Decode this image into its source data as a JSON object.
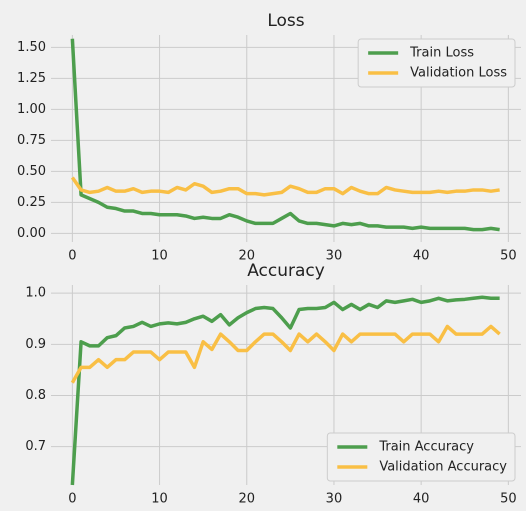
{
  "chart_data": [
    {
      "type": "line",
      "title": "Loss",
      "x": [
        0,
        1,
        2,
        3,
        4,
        5,
        6,
        7,
        8,
        9,
        10,
        11,
        12,
        13,
        14,
        15,
        16,
        17,
        18,
        19,
        20,
        21,
        22,
        23,
        24,
        25,
        26,
        27,
        28,
        29,
        30,
        31,
        32,
        33,
        34,
        35,
        36,
        37,
        38,
        39,
        40,
        41,
        42,
        43,
        44,
        45,
        46,
        47,
        48,
        49
      ],
      "series": [
        {
          "name": "Train Loss",
          "color": "#4d9e4d",
          "values": [
            1.57,
            0.31,
            0.28,
            0.25,
            0.21,
            0.2,
            0.18,
            0.18,
            0.16,
            0.16,
            0.15,
            0.15,
            0.15,
            0.14,
            0.12,
            0.13,
            0.12,
            0.12,
            0.15,
            0.13,
            0.1,
            0.08,
            0.08,
            0.08,
            0.12,
            0.16,
            0.1,
            0.08,
            0.08,
            0.07,
            0.06,
            0.08,
            0.07,
            0.08,
            0.06,
            0.06,
            0.05,
            0.05,
            0.05,
            0.04,
            0.05,
            0.04,
            0.04,
            0.04,
            0.04,
            0.04,
            0.03,
            0.03,
            0.04,
            0.03
          ]
        },
        {
          "name": "Validation Loss",
          "color": "#f9bf45",
          "values": [
            0.45,
            0.35,
            0.33,
            0.34,
            0.37,
            0.34,
            0.34,
            0.36,
            0.33,
            0.34,
            0.34,
            0.33,
            0.37,
            0.35,
            0.4,
            0.38,
            0.33,
            0.34,
            0.36,
            0.36,
            0.32,
            0.32,
            0.31,
            0.32,
            0.33,
            0.38,
            0.36,
            0.33,
            0.33,
            0.36,
            0.36,
            0.32,
            0.37,
            0.34,
            0.32,
            0.32,
            0.37,
            0.35,
            0.34,
            0.33,
            0.33,
            0.33,
            0.34,
            0.33,
            0.34,
            0.34,
            0.35,
            0.35,
            0.34,
            0.35
          ]
        }
      ],
      "xlim": [
        -2.45,
        51.45
      ],
      "xticks": [
        0,
        10,
        20,
        30,
        40,
        50
      ],
      "ylim": [
        -0.07,
        1.6
      ],
      "yticks": [
        {
          "value": 0,
          "label": "0.00"
        },
        0.25,
        {
          "value": 0.5,
          "label": "0.50"
        },
        0.75,
        {
          "value": 1,
          "label": "1.00"
        },
        1.25,
        {
          "value": 1.5,
          "label": "1.50"
        }
      ],
      "grid": true,
      "legend": "upper right"
    },
    {
      "type": "line",
      "title": "Accuracy",
      "x": [
        0,
        1,
        2,
        3,
        4,
        5,
        6,
        7,
        8,
        9,
        10,
        11,
        12,
        13,
        14,
        15,
        16,
        17,
        18,
        19,
        20,
        21,
        22,
        23,
        24,
        25,
        26,
        27,
        28,
        29,
        30,
        31,
        32,
        33,
        34,
        35,
        36,
        37,
        38,
        39,
        40,
        41,
        42,
        43,
        44,
        45,
        46,
        47,
        48,
        49
      ],
      "series": [
        {
          "name": "Train Accuracy",
          "color": "#4d9e4d",
          "values": [
            0.625,
            0.905,
            0.897,
            0.897,
            0.913,
            0.917,
            0.932,
            0.935,
            0.943,
            0.935,
            0.94,
            0.942,
            0.94,
            0.943,
            0.95,
            0.955,
            0.945,
            0.958,
            0.938,
            0.952,
            0.962,
            0.97,
            0.972,
            0.97,
            0.952,
            0.932,
            0.968,
            0.97,
            0.97,
            0.972,
            0.982,
            0.968,
            0.978,
            0.968,
            0.978,
            0.972,
            0.985,
            0.982,
            0.985,
            0.988,
            0.982,
            0.985,
            0.99,
            0.985,
            0.987,
            0.988,
            0.99,
            0.992,
            0.99,
            0.99
          ]
        },
        {
          "name": "Validation Accuracy",
          "color": "#f9bf45",
          "values": [
            0.825,
            0.855,
            0.855,
            0.87,
            0.855,
            0.87,
            0.87,
            0.885,
            0.885,
            0.885,
            0.87,
            0.885,
            0.885,
            0.885,
            0.855,
            0.905,
            0.89,
            0.92,
            0.905,
            0.888,
            0.888,
            0.905,
            0.92,
            0.92,
            0.905,
            0.888,
            0.92,
            0.905,
            0.92,
            0.905,
            0.888,
            0.92,
            0.905,
            0.92,
            0.92,
            0.92,
            0.92,
            0.92,
            0.905,
            0.92,
            0.92,
            0.92,
            0.905,
            0.935,
            0.92,
            0.92,
            0.92,
            0.92,
            0.935,
            0.92
          ]
        }
      ],
      "xlim": [
        -2.45,
        51.45
      ],
      "xticks": [
        0,
        10,
        20,
        30,
        40,
        50
      ],
      "ylim": [
        0.625,
        1.016
      ],
      "yticks": [
        0.7,
        0.8,
        0.9,
        {
          "value": 1,
          "label": "1.0"
        }
      ],
      "grid": true,
      "legend": "lower right"
    }
  ]
}
